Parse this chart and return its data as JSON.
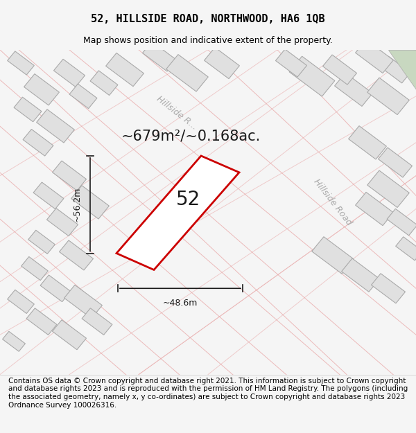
{
  "title": "52, HILLSIDE ROAD, NORTHWOOD, HA6 1QB",
  "subtitle": "Map shows position and indicative extent of the property.",
  "area_text": "~679m²/~0.168ac.",
  "label_52": "52",
  "dim_width": "~48.6m",
  "dim_height": "~56.2m",
  "road_label_top": "Hillside R...",
  "road_label_right": "Hillside Road",
  "footer_text": "Contains OS data © Crown copyright and database right 2021. This information is subject to Crown copyright and database rights 2023 and is reproduced with the permission of HM Land Registry. The polygons (including the associated geometry, namely x, y co-ordinates) are subject to Crown copyright and database rights 2023 Ordnance Survey 100026316.",
  "bg_color": "#f5f5f5",
  "map_bg": "#ffffff",
  "footer_bg": "#ffffff",
  "plot_outline_color": "#cc0000",
  "plot_fill_color": "#ffffff",
  "dim_line_color": "#1a1a1a",
  "road_stripe_color": "#e8a0a0",
  "building_fill": "#e0e0e0",
  "building_outline": "#aaaaaa",
  "title_fontsize": 11,
  "subtitle_fontsize": 9,
  "area_fontsize": 16,
  "label_fontsize": 20,
  "footer_fontsize": 7.5
}
